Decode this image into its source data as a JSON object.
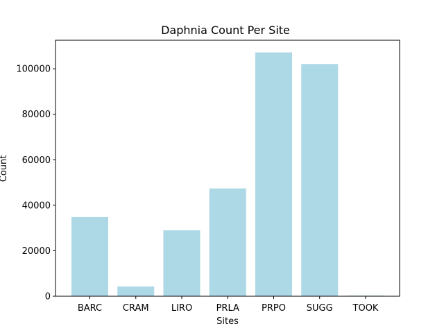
{
  "chart_data": {
    "type": "bar",
    "title": "Daphnia Count Per Site",
    "xlabel": "Sites",
    "ylabel": "Count",
    "categories": [
      "BARC",
      "CRAM",
      "LIRO",
      "PRLA",
      "PRPO",
      "SUGG",
      "TOOK"
    ],
    "values": [
      34800,
      4300,
      29000,
      47400,
      107200,
      102100,
      300
    ],
    "ylim": [
      0,
      112560
    ],
    "yticks": [
      0,
      20000,
      40000,
      60000,
      80000,
      100000
    ],
    "ytick_labels": [
      "0",
      "20000",
      "40000",
      "60000",
      "80000",
      "100000"
    ],
    "bar_color": "#add8e6",
    "grid": false,
    "legend": "none"
  }
}
